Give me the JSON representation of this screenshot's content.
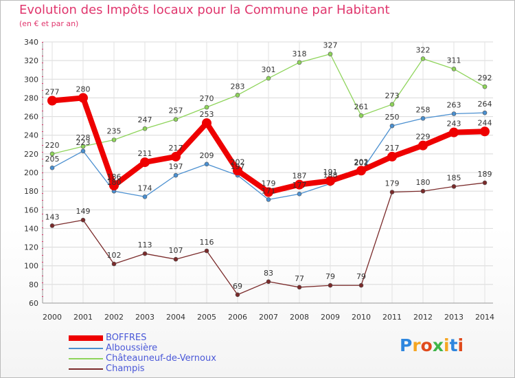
{
  "title": "Evolution des Impôts locaux pour la Commune par Habitant",
  "subtitle": "(en € et par an)",
  "logo": {
    "text": [
      "P",
      "r",
      "o",
      "x",
      "i",
      "t",
      "i"
    ],
    "colors": [
      "#2e86de",
      "#f5a623",
      "#e04a1c",
      "#3fb549",
      "#f5a623",
      "#2e86de",
      "#e04a1c"
    ]
  },
  "chart_data": {
    "type": "line",
    "title": "Evolution des Impôts locaux pour la Commune par Habitant",
    "ylabel": "(en € et par an)",
    "categories": [
      "2000",
      "2001",
      "2002",
      "2003",
      "2004",
      "2005",
      "2006",
      "2007",
      "2008",
      "2009",
      "2010",
      "2011",
      "2012",
      "2013",
      "2014"
    ],
    "ylim": [
      60,
      340
    ],
    "yticks": [
      60,
      80,
      100,
      120,
      140,
      160,
      180,
      200,
      220,
      240,
      260,
      280,
      300,
      320,
      340
    ],
    "grid": true,
    "legend_position": "bottom-left",
    "series": [
      {
        "name": "Champis",
        "color": "#7a2a2a",
        "width": 1.3,
        "marker": 3,
        "values": [
          143,
          149,
          102,
          113,
          107,
          116,
          69,
          83,
          77,
          79,
          79,
          179,
          180,
          185,
          189
        ]
      },
      {
        "name": "Châteauneuf-de-Vernoux",
        "color": "#8ed45a",
        "width": 1.3,
        "marker": 3,
        "values": [
          220,
          228,
          235,
          247,
          257,
          270,
          283,
          301,
          318,
          327,
          261,
          273,
          322,
          311,
          292
        ]
      },
      {
        "name": "Alboussière",
        "color": "#4a8fd0",
        "width": 1.3,
        "marker": 3,
        "values": [
          205,
          223,
          180,
          174,
          197,
          209,
          197,
          171,
          177,
          188,
          201,
          250,
          258,
          263,
          264
        ]
      },
      {
        "name": "BOFFRES",
        "color": "#ee0000",
        "width": 8,
        "marker": 7,
        "values": [
          277,
          280,
          186,
          211,
          217,
          253,
          202,
          179,
          187,
          191,
          202,
          217,
          229,
          243,
          244
        ]
      }
    ]
  }
}
